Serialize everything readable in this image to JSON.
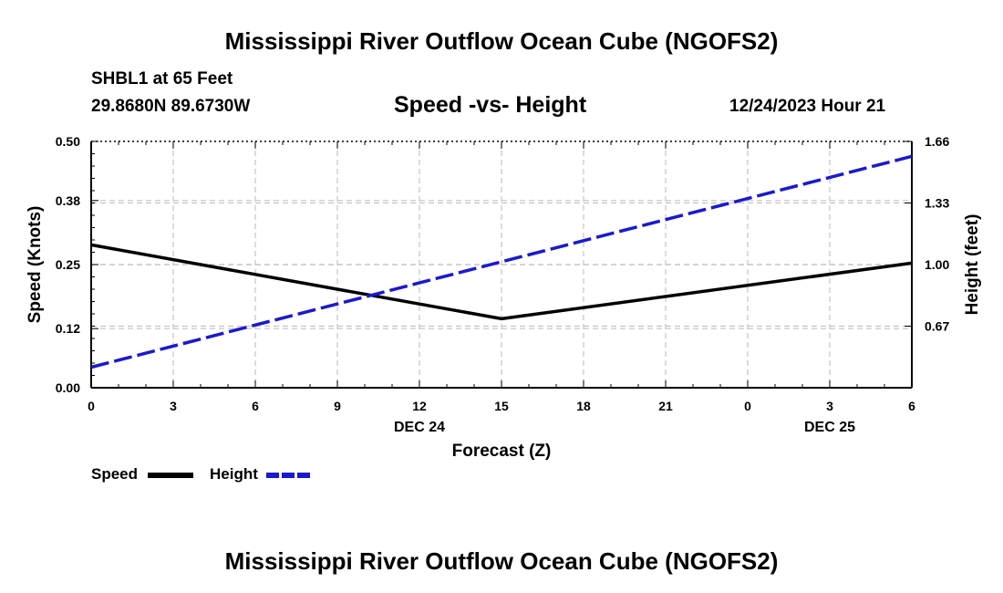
{
  "header": {
    "title": "Mississippi River Outflow Ocean Cube (NGOFS2)",
    "station": "SHBL1 at 65 Feet",
    "coordinates": "29.8680N  89.6730W",
    "subtitle": "Speed -vs- Height",
    "datetime": "12/24/2023 Hour 21"
  },
  "footer": {
    "title": "Mississippi River Outflow Ocean Cube (NGOFS2)"
  },
  "legend": {
    "speed_label": "Speed",
    "height_label": "Height"
  },
  "chart_data": {
    "type": "line",
    "title": "Speed -vs- Height",
    "xlabel": "Forecast (Z)",
    "ylabel": "Speed (Knots)",
    "y2label": "Height (feet)",
    "x": [
      0,
      3,
      6,
      9,
      12,
      15,
      18,
      21,
      24,
      27,
      30
    ],
    "x_tick_labels": [
      "0",
      "3",
      "6",
      "9",
      "12",
      "15",
      "18",
      "21",
      "0",
      "3",
      "6"
    ],
    "x_date_labels": [
      {
        "at": 12,
        "label": "DEC 24"
      },
      {
        "at": 27,
        "label": "DEC 25"
      }
    ],
    "xlim": [
      0,
      30
    ],
    "ylim": [
      0,
      0.5
    ],
    "y_ticks": [
      0.0,
      0.12,
      0.25,
      0.38,
      0.5
    ],
    "y_tick_labels": [
      "0.00",
      "0.12",
      "0.25",
      "0.38",
      "0.50"
    ],
    "y2lim": [
      0.34,
      1.66
    ],
    "y2_ticks": [
      0.67,
      1.0,
      1.33,
      1.66
    ],
    "y2_tick_labels": [
      "0.67",
      "1.00",
      "1.33",
      "1.66"
    ],
    "series": [
      {
        "name": "Speed",
        "axis": "left",
        "color": "#000000",
        "dash": "solid",
        "x": [
          0,
          15,
          30
        ],
        "values": [
          0.29,
          0.14,
          0.253
        ]
      },
      {
        "name": "Height",
        "axis": "right",
        "color": "#1a1acc",
        "dash": "dashed",
        "x": [
          0,
          30
        ],
        "values": [
          0.45,
          1.58
        ]
      }
    ],
    "grid": true,
    "legend_position": "bottom-left"
  }
}
